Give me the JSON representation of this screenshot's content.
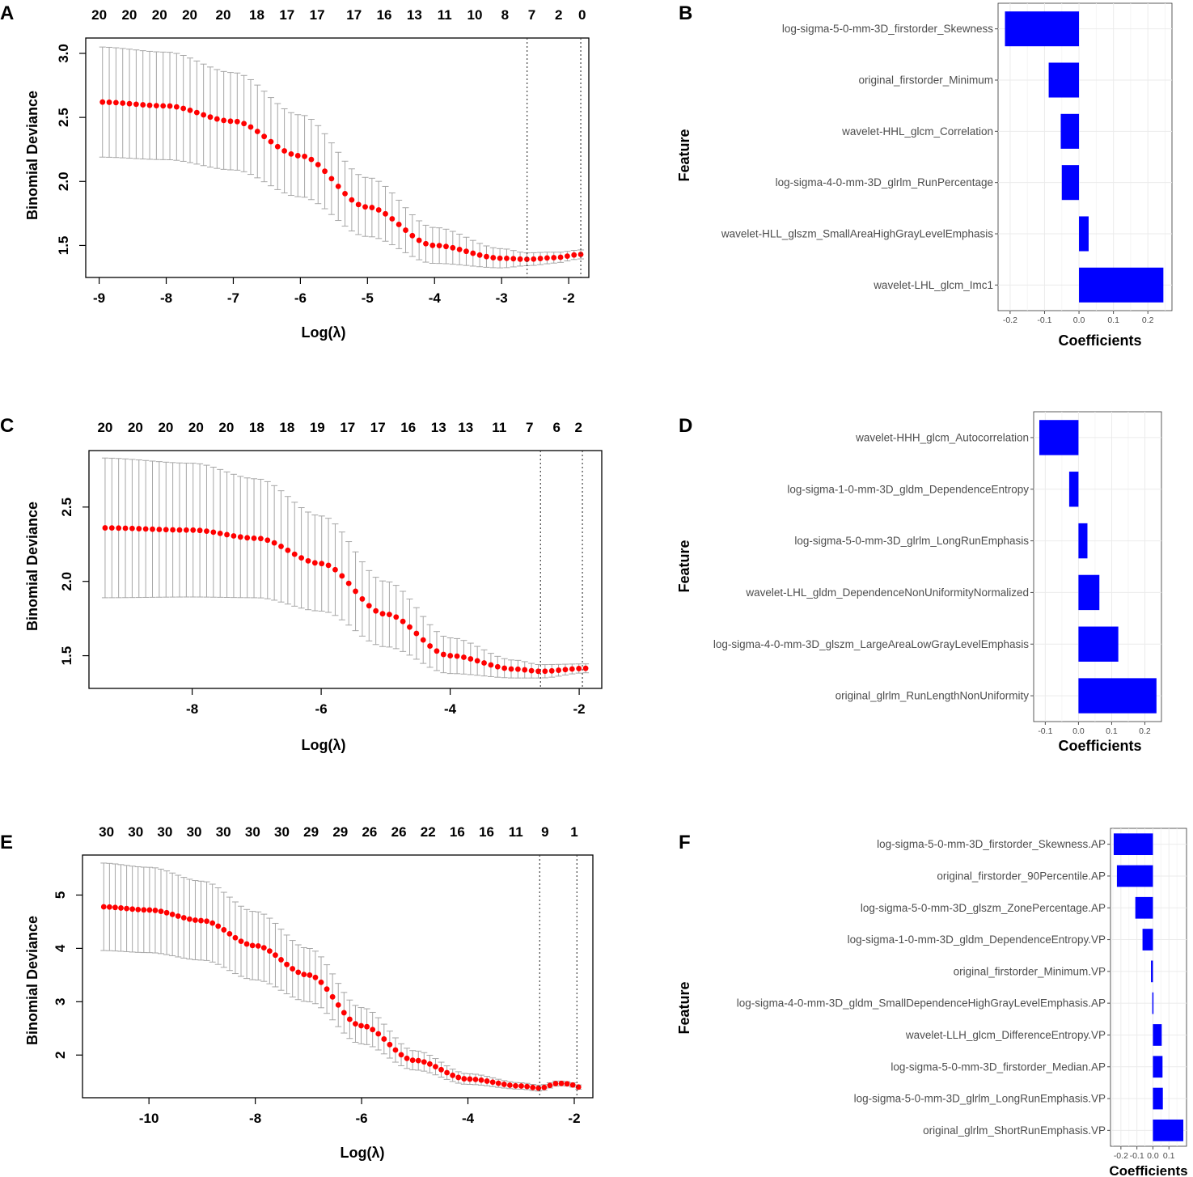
{
  "colors": {
    "point": "#ff0000",
    "errorbar": "#a6a6a6",
    "bar": "#0000ff",
    "grid": "#ebebeb",
    "vline": "#333333"
  },
  "chart_data": [
    {
      "id": "A",
      "type": "line",
      "label": "A",
      "xlabel": "Log(λ)",
      "ylabel": "Binomial Deviance",
      "xlim": [
        -9.2,
        -1.7
      ],
      "ylim": [
        1.25,
        3.12
      ],
      "xticks": [
        -9,
        -8,
        -7,
        -6,
        -5,
        -4,
        -3,
        -2
      ],
      "yticks": [
        1.5,
        2.0,
        2.5,
        3.0
      ],
      "ytick_labels": [
        "1.5",
        "2.0",
        "2.5",
        "3.0"
      ],
      "top_ticks_x": [
        -9,
        -8.55,
        -8.1,
        -7.65,
        -7.15,
        -6.65,
        -6.2,
        -5.75,
        -5.2,
        -4.75,
        -4.3,
        -3.85,
        -3.4,
        -2.95,
        -2.55,
        -2.15,
        -1.8
      ],
      "top_ticks": [
        "20",
        "20",
        "20",
        "20",
        "20",
        "18",
        "17",
        "17",
        "17",
        "16",
        "13",
        "11",
        "10",
        "8",
        "7",
        "2",
        "0"
      ],
      "vlines": [
        -2.62,
        -1.82
      ],
      "x": [
        -8.95,
        -1.82
      ],
      "npoints": 72,
      "curve_knots": [
        [
          -9,
          2.62
        ],
        [
          -8,
          2.59
        ],
        [
          -7,
          2.47
        ],
        [
          -6,
          2.2
        ],
        [
          -5,
          1.8
        ],
        [
          -4,
          1.5
        ],
        [
          -3,
          1.4
        ],
        [
          -2.62,
          1.392
        ],
        [
          -2.2,
          1.405
        ],
        [
          -1.82,
          1.43
        ]
      ],
      "se_knots": [
        [
          -9,
          0.43
        ],
        [
          -8,
          0.42
        ],
        [
          -7,
          0.38
        ],
        [
          -6,
          0.32
        ],
        [
          -5,
          0.23
        ],
        [
          -4,
          0.14
        ],
        [
          -3,
          0.075
        ],
        [
          -2.62,
          0.05
        ],
        [
          -1.82,
          0.035
        ]
      ]
    },
    {
      "id": "C",
      "type": "line",
      "label": "C",
      "xlabel": "Log(λ)",
      "ylabel": "Binomial Deviance",
      "xlim": [
        -9.6,
        -1.65
      ],
      "ylim": [
        1.28,
        2.88
      ],
      "xticks": [
        -8,
        -6,
        -4,
        -2
      ],
      "yticks": [
        1.5,
        2.0,
        2.5
      ],
      "ytick_labels": [
        "1.5",
        "2.0",
        "2.5"
      ],
      "top_ticks_x": [
        -9.35,
        -8.88,
        -8.41,
        -7.94,
        -7.47,
        -7.0,
        -6.53,
        -6.06,
        -5.59,
        -5.12,
        -4.65,
        -4.18,
        -3.76,
        -3.24,
        -2.77,
        -2.35,
        -2.01
      ],
      "top_ticks": [
        "20",
        "20",
        "20",
        "20",
        "20",
        "18",
        "18",
        "19",
        "17",
        "17",
        "16",
        "13",
        "13",
        "11",
        "7",
        "6",
        "2"
      ],
      "vlines": [
        -2.6,
        -1.95
      ],
      "x": [
        -9.35,
        -1.9
      ],
      "npoints": 72,
      "curve_knots": [
        [
          -9.4,
          2.36
        ],
        [
          -8,
          2.345
        ],
        [
          -7,
          2.29
        ],
        [
          -6,
          2.12
        ],
        [
          -5,
          1.78
        ],
        [
          -4,
          1.5
        ],
        [
          -3,
          1.41
        ],
        [
          -2.6,
          1.395
        ],
        [
          -1.9,
          1.415
        ]
      ],
      "se_knots": [
        [
          -9.4,
          0.47
        ],
        [
          -8,
          0.45
        ],
        [
          -7,
          0.4
        ],
        [
          -6,
          0.32
        ],
        [
          -5,
          0.22
        ],
        [
          -4,
          0.12
        ],
        [
          -3,
          0.06
        ],
        [
          -2.6,
          0.045
        ],
        [
          -1.9,
          0.03
        ]
      ]
    },
    {
      "id": "E",
      "type": "line",
      "label": "E",
      "xlabel": "Log(λ)",
      "ylabel": "Binomial Deviance",
      "xlim": [
        -11.25,
        -1.65
      ],
      "ylim": [
        1.2,
        5.75
      ],
      "xticks": [
        -10,
        -8,
        -6,
        -4,
        -2
      ],
      "yticks": [
        2,
        3,
        4,
        5
      ],
      "ytick_labels": [
        "2",
        "3",
        "4",
        "5"
      ],
      "top_ticks_x": [
        -10.8,
        -10.25,
        -9.7,
        -9.15,
        -8.6,
        -8.05,
        -7.5,
        -6.95,
        -6.4,
        -5.85,
        -5.3,
        -4.75,
        -4.2,
        -3.65,
        -3.1,
        -2.55,
        -2.0
      ],
      "top_ticks": [
        "30",
        "30",
        "30",
        "30",
        "30",
        "30",
        "30",
        "29",
        "29",
        "26",
        "26",
        "22",
        "16",
        "16",
        "11",
        "9",
        "1"
      ],
      "vlines": [
        -2.65,
        -1.95
      ],
      "x": [
        -10.85,
        -1.92
      ],
      "npoints": 84,
      "curve_knots": [
        [
          -10.9,
          4.78
        ],
        [
          -10,
          4.72
        ],
        [
          -9,
          4.52
        ],
        [
          -8,
          4.05
        ],
        [
          -7,
          3.5
        ],
        [
          -6,
          2.55
        ],
        [
          -5,
          1.9
        ],
        [
          -4,
          1.55
        ],
        [
          -3,
          1.42
        ],
        [
          -2.65,
          1.38
        ],
        [
          -2.3,
          1.47
        ],
        [
          -2.1,
          1.46
        ],
        [
          -1.92,
          1.4
        ]
      ],
      "se_knots": [
        [
          -10.9,
          0.82
        ],
        [
          -10,
          0.8
        ],
        [
          -9,
          0.74
        ],
        [
          -8,
          0.64
        ],
        [
          -7,
          0.5
        ],
        [
          -6,
          0.34
        ],
        [
          -5,
          0.18
        ],
        [
          -4,
          0.1
        ],
        [
          -3,
          0.06
        ],
        [
          -1.92,
          0.04
        ]
      ]
    },
    {
      "id": "B",
      "type": "bar",
      "orientation": "horizontal",
      "label": "B",
      "xlabel": "Coefficients",
      "ylabel": "Feature",
      "xlim": [
        -0.235,
        0.27
      ],
      "xticks": [
        -0.2,
        -0.1,
        0.0,
        0.1,
        0.2
      ],
      "xtick_labels": [
        "-0.2",
        "-0.1",
        "0.0",
        "0.1",
        "0.2"
      ],
      "categories": [
        "log-sigma-5-0-mm-3D_firstorder_Skewness",
        "original_firstorder_Minimum",
        "wavelet-HHL_glcm_Correlation",
        "log-sigma-4-0-mm-3D_glrlm_RunPercentage",
        "wavelet-HLL_glszm_SmallAreaHighGrayLevelEmphasis",
        "wavelet-LHL_glcm_Imc1"
      ],
      "values": [
        -0.215,
        -0.088,
        -0.053,
        -0.05,
        0.028,
        0.245
      ]
    },
    {
      "id": "D",
      "type": "bar",
      "orientation": "horizontal",
      "label": "D",
      "xlabel": "Coefficients",
      "ylabel": "Feature",
      "xlim": [
        -0.135,
        0.25
      ],
      "xticks": [
        -0.1,
        0.0,
        0.1,
        0.2
      ],
      "xtick_labels": [
        "-0.1",
        "0.0",
        "0.1",
        "0.2"
      ],
      "categories": [
        "wavelet-HHH_glcm_Autocorrelation",
        "log-sigma-1-0-mm-3D_gldm_DependenceEntropy",
        "log-sigma-5-0-mm-3D_glrlm_LongRunEmphasis",
        "wavelet-LHL_gldm_DependenceNonUniformityNormalized",
        "log-sigma-4-0-mm-3D_glszm_LargeAreaLowGrayLevelEmphasis",
        "original_glrlm_RunLengthNonUniformity"
      ],
      "values": [
        -0.118,
        -0.028,
        0.027,
        0.063,
        0.12,
        0.235
      ]
    },
    {
      "id": "F",
      "type": "bar",
      "orientation": "horizontal",
      "label": "F",
      "xlabel": "Coefficients",
      "ylabel": "Feature",
      "xlim": [
        -0.265,
        0.21
      ],
      "xticks": [
        -0.2,
        -0.1,
        0.0,
        0.1
      ],
      "xtick_labels": [
        "-0.2",
        "-0.1",
        "0.0",
        "0.1"
      ],
      "categories": [
        "log-sigma-5-0-mm-3D_firstorder_Skewness.AP",
        "original_firstorder_90Percentile.AP",
        "log-sigma-5-0-mm-3D_glszm_ZonePercentage.AP",
        "log-sigma-1-0-mm-3D_gldm_DependenceEntropy.VP",
        "original_firstorder_Minimum.VP",
        "log-sigma-4-0-mm-3D_gldm_SmallDependenceHighGrayLevelEmphasis.AP",
        "wavelet-LLH_glcm_DifferenceEntropy.VP",
        "log-sigma-5-0-mm-3D_firstorder_Median.AP",
        "log-sigma-5-0-mm-3D_glrlm_LongRunEmphasis.VP",
        "original_glrlm_ShortRunEmphasis.VP"
      ],
      "values": [
        -0.245,
        -0.225,
        -0.11,
        -0.065,
        -0.012,
        -0.004,
        0.055,
        0.06,
        0.062,
        0.19
      ]
    }
  ]
}
